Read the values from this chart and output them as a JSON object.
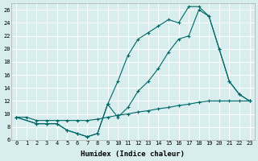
{
  "xlabel": "Humidex (Indice chaleur)",
  "bg_color": "#d8eeee",
  "grid_color": "#ffffff",
  "line_color": "#006666",
  "xlim": [
    -0.5,
    23.5
  ],
  "ylim": [
    6,
    27
  ],
  "yticks": [
    6,
    8,
    10,
    12,
    14,
    16,
    18,
    20,
    22,
    24,
    26
  ],
  "xticks": [
    0,
    1,
    2,
    3,
    4,
    5,
    6,
    7,
    8,
    9,
    10,
    11,
    12,
    13,
    14,
    15,
    16,
    17,
    18,
    19,
    20,
    21,
    22,
    23
  ],
  "s1_x": [
    0,
    1,
    2,
    3,
    4,
    5,
    6,
    7,
    8,
    9,
    10,
    11,
    12,
    13,
    14,
    15,
    16,
    17,
    18,
    19,
    20,
    21,
    22,
    23
  ],
  "s1_y": [
    9.5,
    9.5,
    9.0,
    9.0,
    9.0,
    9.0,
    9.0,
    9.0,
    9.2,
    9.5,
    9.8,
    10.0,
    10.3,
    10.5,
    10.8,
    11.0,
    11.3,
    11.5,
    11.8,
    12.0,
    12.0,
    12.0,
    12.0,
    12.0
  ],
  "s2_x": [
    0,
    2,
    3,
    4,
    5,
    6,
    7,
    8,
    9,
    10,
    11,
    12,
    13,
    14,
    15,
    16,
    17,
    18,
    19,
    20,
    21,
    22,
    23
  ],
  "s2_y": [
    9.5,
    8.5,
    8.5,
    8.5,
    7.5,
    7.0,
    6.5,
    7.0,
    11.5,
    15.0,
    19.0,
    21.5,
    22.5,
    23.5,
    24.5,
    24.0,
    26.5,
    26.5,
    25.0,
    20.0,
    15.0,
    13.0,
    12.0
  ],
  "s3_x": [
    0,
    2,
    3,
    4,
    5,
    6,
    7,
    8,
    9,
    10,
    11,
    12,
    13,
    14,
    15,
    16,
    17,
    18,
    19,
    20,
    21,
    22,
    23
  ],
  "s3_y": [
    9.5,
    8.5,
    8.5,
    8.5,
    7.5,
    7.0,
    6.5,
    7.0,
    11.5,
    9.5,
    11.0,
    13.5,
    15.0,
    17.0,
    19.5,
    21.5,
    22.0,
    26.0,
    25.0,
    20.0,
    15.0,
    13.0,
    12.0
  ]
}
